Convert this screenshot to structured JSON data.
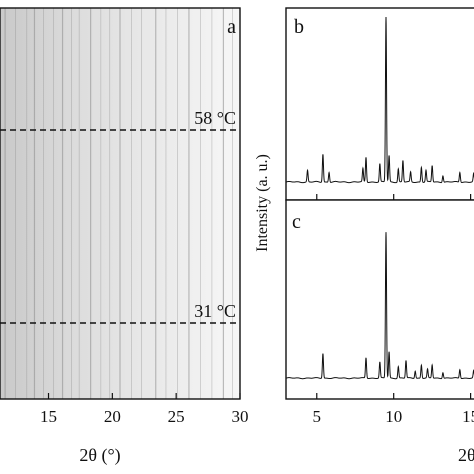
{
  "colors": {
    "ink": "#111111",
    "panel_bg_light": "#f4f4f4",
    "panel_bg_dark": "#d2d2d2"
  },
  "chart_data": [
    {
      "panel": "a",
      "type": "heatmap",
      "label": "a",
      "xlabel": "2θ (°)",
      "xticks": [
        15,
        20,
        25,
        30
      ],
      "xlim": [
        11.2,
        30
      ],
      "annotations": [
        {
          "text": "58 °C",
          "style": "dashed-line"
        },
        {
          "text": "31 °C",
          "style": "dashed-line"
        }
      ],
      "line_positions": [
        11.6,
        12.4,
        13.3,
        13.9,
        14.6,
        15.4,
        16.1,
        16.8,
        17.4,
        18.3,
        19.1,
        19.8,
        20.6,
        21.5,
        22.3,
        23.4,
        24.2,
        25.1,
        26.0,
        26.9,
        27.8,
        28.7,
        29.4
      ]
    },
    {
      "panel": "b",
      "type": "line",
      "label": "b",
      "ylabel": "Intensity (a. u.)",
      "xlim": [
        3,
        16
      ],
      "ylim": [
        0,
        100
      ],
      "peaks": [
        {
          "x": 4.4,
          "y": 7
        },
        {
          "x": 5.4,
          "y": 17
        },
        {
          "x": 5.8,
          "y": 6
        },
        {
          "x": 8.0,
          "y": 8
        },
        {
          "x": 8.2,
          "y": 15
        },
        {
          "x": 9.1,
          "y": 11
        },
        {
          "x": 9.5,
          "y": 100
        },
        {
          "x": 9.7,
          "y": 16
        },
        {
          "x": 10.3,
          "y": 8
        },
        {
          "x": 10.6,
          "y": 13
        },
        {
          "x": 11.1,
          "y": 6
        },
        {
          "x": 11.8,
          "y": 9
        },
        {
          "x": 12.1,
          "y": 7
        },
        {
          "x": 12.5,
          "y": 10
        },
        {
          "x": 13.2,
          "y": 4
        },
        {
          "x": 14.3,
          "y": 6
        },
        {
          "x": 15.2,
          "y": 5
        }
      ]
    },
    {
      "panel": "c",
      "type": "line",
      "label": "c",
      "xlabel": "2θ",
      "xticks": [
        5,
        10,
        15
      ],
      "xlim": [
        3,
        16
      ],
      "ylim": [
        0,
        100
      ],
      "peaks": [
        {
          "x": 5.4,
          "y": 17
        },
        {
          "x": 8.2,
          "y": 14
        },
        {
          "x": 9.1,
          "y": 11
        },
        {
          "x": 9.5,
          "y": 100
        },
        {
          "x": 9.7,
          "y": 18
        },
        {
          "x": 10.3,
          "y": 8
        },
        {
          "x": 10.8,
          "y": 12
        },
        {
          "x": 11.4,
          "y": 5
        },
        {
          "x": 11.8,
          "y": 9
        },
        {
          "x": 12.2,
          "y": 6
        },
        {
          "x": 12.5,
          "y": 9
        },
        {
          "x": 13.2,
          "y": 4
        },
        {
          "x": 14.3,
          "y": 6
        },
        {
          "x": 15.2,
          "y": 5
        }
      ]
    }
  ]
}
